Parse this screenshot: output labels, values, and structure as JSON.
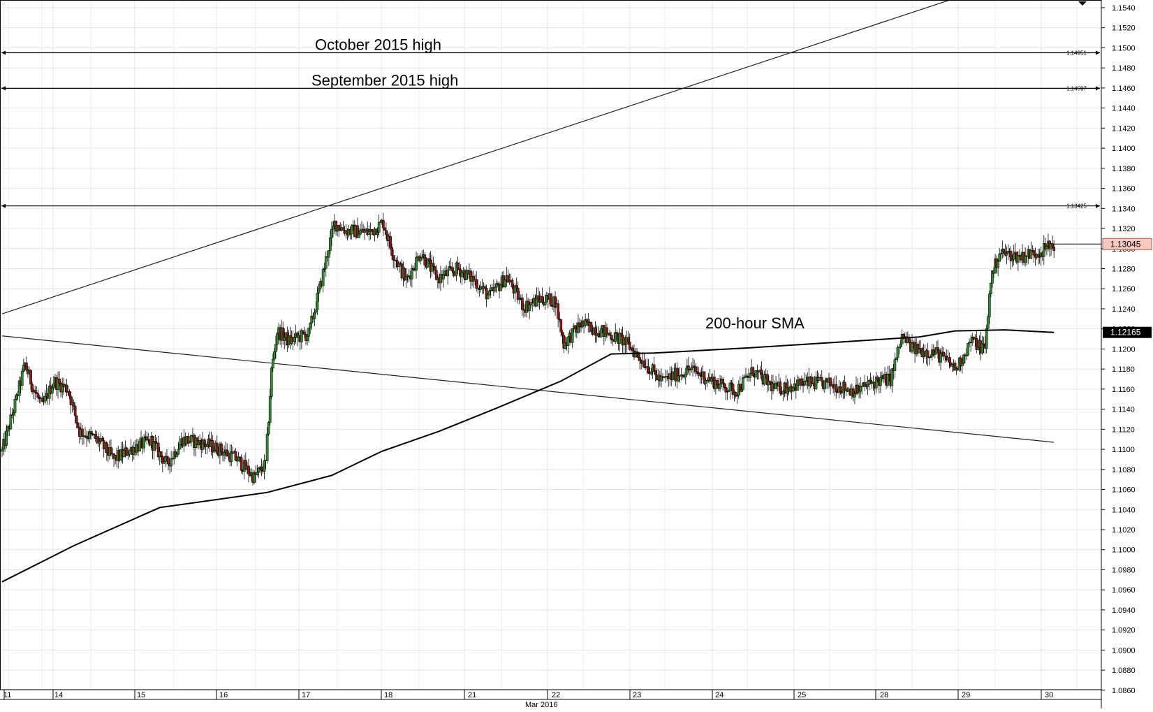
{
  "chart_data": {
    "type": "candlestick",
    "title": "",
    "xlabel": "",
    "ylabel": "",
    "ylim": [
      1.085,
      1.155
    ],
    "y_ticks": [
      "1.1540",
      "1.1520",
      "1.1500",
      "1.1480",
      "1.1460",
      "1.1440",
      "1.1420",
      "1.1400",
      "1.1380",
      "1.1360",
      "1.1340",
      "1.1320",
      "1.1300",
      "1.1280",
      "1.1260",
      "1.1240",
      "1.1220",
      "1.1200",
      "1.1180",
      "1.1160",
      "1.1140",
      "1.1120",
      "1.1100",
      "1.1080",
      "1.1060",
      "1.1040",
      "1.1020",
      "1.1000",
      "1.0980",
      "1.0960",
      "1.0940",
      "1.0920",
      "1.0900",
      "1.0880",
      "1.0860"
    ],
    "x_tick_labels": [
      "11",
      "14",
      "15",
      "16",
      "17",
      "18",
      "21",
      "22",
      "23",
      "24",
      "25",
      "28",
      "29",
      "30"
    ],
    "month_label": "Mar 2016",
    "current_price": "1.13045",
    "sma_value": "1.12165",
    "levels": [
      {
        "name": "October 2015 high",
        "value": 1.14951,
        "label": "1.14951"
      },
      {
        "name": "September 2015 high",
        "value": 1.14597,
        "label": "1.14597"
      },
      {
        "name": "",
        "value": 1.13425,
        "label": "1.13425"
      }
    ],
    "annotations": [
      {
        "text": "October 2015 high"
      },
      {
        "text": "September 2015 high"
      },
      {
        "text": "200-hour SMA"
      }
    ],
    "sma_200": [
      {
        "i": 0,
        "v": 1.0968
      },
      {
        "i": 50,
        "v": 1.1004
      },
      {
        "i": 110,
        "v": 1.1042
      },
      {
        "i": 185,
        "v": 1.1057
      },
      {
        "i": 230,
        "v": 1.1074
      },
      {
        "i": 265,
        "v": 1.1098
      },
      {
        "i": 305,
        "v": 1.1118
      },
      {
        "i": 345,
        "v": 1.1141
      },
      {
        "i": 390,
        "v": 1.1168
      },
      {
        "i": 425,
        "v": 1.1195
      },
      {
        "i": 455,
        "v": 1.1196
      },
      {
        "i": 520,
        "v": 1.1201
      },
      {
        "i": 640,
        "v": 1.1212
      },
      {
        "i": 665,
        "v": 1.1218
      },
      {
        "i": 700,
        "v": 1.1219
      },
      {
        "i": 734,
        "v": 1.12165
      }
    ],
    "trendlines": [
      {
        "from": {
          "i": 0,
          "v": 1.1235
        },
        "to": {
          "i": 662,
          "v": 1.1548
        }
      },
      {
        "from": {
          "i": 0,
          "v": 1.1213
        },
        "to": {
          "i": 734,
          "v": 1.1107
        }
      }
    ],
    "anchors": [
      {
        "i": 0,
        "v": 1.1098
      },
      {
        "i": 10,
        "v": 1.115
      },
      {
        "i": 16,
        "v": 1.1185
      },
      {
        "i": 22,
        "v": 1.116
      },
      {
        "i": 28,
        "v": 1.1142
      },
      {
        "i": 36,
        "v": 1.1168
      },
      {
        "i": 46,
        "v": 1.116
      },
      {
        "i": 54,
        "v": 1.1118
      },
      {
        "i": 66,
        "v": 1.111
      },
      {
        "i": 78,
        "v": 1.109
      },
      {
        "i": 92,
        "v": 1.1102
      },
      {
        "i": 104,
        "v": 1.1108
      },
      {
        "i": 115,
        "v": 1.1085
      },
      {
        "i": 126,
        "v": 1.111
      },
      {
        "i": 140,
        "v": 1.1106
      },
      {
        "i": 152,
        "v": 1.11
      },
      {
        "i": 164,
        "v": 1.109
      },
      {
        "i": 176,
        "v": 1.1072
      },
      {
        "i": 184,
        "v": 1.1085
      },
      {
        "i": 188,
        "v": 1.1178
      },
      {
        "i": 192,
        "v": 1.1218
      },
      {
        "i": 200,
        "v": 1.1208
      },
      {
        "i": 214,
        "v": 1.1215
      },
      {
        "i": 222,
        "v": 1.1262
      },
      {
        "i": 228,
        "v": 1.1302
      },
      {
        "i": 232,
        "v": 1.1325
      },
      {
        "i": 240,
        "v": 1.1318
      },
      {
        "i": 256,
        "v": 1.1316
      },
      {
        "i": 266,
        "v": 1.1326
      },
      {
        "i": 272,
        "v": 1.1298
      },
      {
        "i": 282,
        "v": 1.1268
      },
      {
        "i": 292,
        "v": 1.1296
      },
      {
        "i": 304,
        "v": 1.127
      },
      {
        "i": 318,
        "v": 1.128
      },
      {
        "i": 330,
        "v": 1.1268
      },
      {
        "i": 340,
        "v": 1.1252
      },
      {
        "i": 352,
        "v": 1.1272
      },
      {
        "i": 364,
        "v": 1.1242
      },
      {
        "i": 376,
        "v": 1.125
      },
      {
        "i": 386,
        "v": 1.1248
      },
      {
        "i": 392,
        "v": 1.1205
      },
      {
        "i": 404,
        "v": 1.1225
      },
      {
        "i": 418,
        "v": 1.1218
      },
      {
        "i": 434,
        "v": 1.1208
      },
      {
        "i": 446,
        "v": 1.119
      },
      {
        "i": 460,
        "v": 1.1168
      },
      {
        "i": 480,
        "v": 1.118
      },
      {
        "i": 500,
        "v": 1.1165
      },
      {
        "i": 512,
        "v": 1.1158
      },
      {
        "i": 524,
        "v": 1.1178
      },
      {
        "i": 540,
        "v": 1.116
      },
      {
        "i": 560,
        "v": 1.1166
      },
      {
        "i": 578,
        "v": 1.1165
      },
      {
        "i": 596,
        "v": 1.1158
      },
      {
        "i": 610,
        "v": 1.1168
      },
      {
        "i": 620,
        "v": 1.117
      },
      {
        "i": 628,
        "v": 1.1212
      },
      {
        "i": 636,
        "v": 1.12
      },
      {
        "i": 652,
        "v": 1.1196
      },
      {
        "i": 666,
        "v": 1.118
      },
      {
        "i": 676,
        "v": 1.1208
      },
      {
        "i": 686,
        "v": 1.12
      },
      {
        "i": 690,
        "v": 1.127
      },
      {
        "i": 696,
        "v": 1.1296
      },
      {
        "i": 710,
        "v": 1.1292
      },
      {
        "i": 726,
        "v": 1.1298
      },
      {
        "i": 734,
        "v": 1.13045
      }
    ]
  }
}
